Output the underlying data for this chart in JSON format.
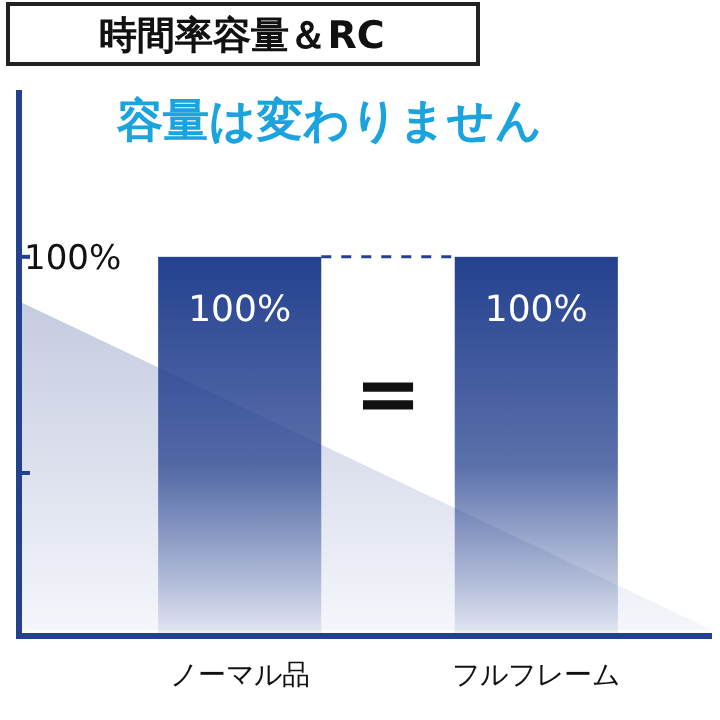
{
  "chart_data": {
    "type": "bar",
    "title": "時間率容量＆RC",
    "subtitle": "容量は変わりません",
    "categories": [
      "ノーマル品",
      "フルフレーム"
    ],
    "values": [
      100,
      100
    ],
    "color": "#24418f",
    "value_labels": [
      "100%",
      "100%"
    ],
    "ylim": [
      0,
      144
    ],
    "yticks": [
      {
        "value": 100,
        "label": "100%"
      },
      {
        "value": 43,
        "label": null
      }
    ],
    "ref_lines": [
      {
        "axis": "y",
        "value": 100,
        "color": "#24418f",
        "line_style": "dashed"
      }
    ],
    "annotations": [
      "="
    ],
    "grid": false
  }
}
